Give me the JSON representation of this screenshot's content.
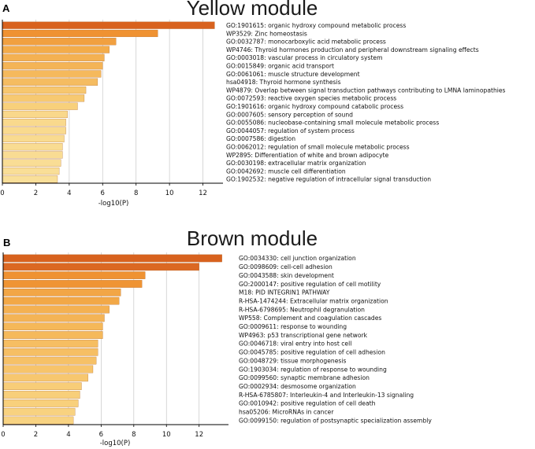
{
  "chart_data": [
    {
      "panel_label": "A",
      "type": "bar",
      "orientation": "horizontal",
      "title": "Yellow module",
      "xlabel": "-log10(P)",
      "ylabel": "",
      "xlim": [
        0,
        13.2
      ],
      "xticks": [
        0,
        2,
        4,
        6,
        8,
        10,
        12
      ],
      "grid": true,
      "categories": [
        "GO:1901615: organic hydroxy compound metabolic process",
        "WP3529: Zinc homeostasis",
        "GO:0032787: monocarboxylic acid metabolic process",
        "WP4746: Thyroid hormones production and peripheral downstream signaling effects",
        "GO:0003018: vascular process in circulatory system",
        "GO:0015849: organic acid transport",
        "GO:0061061: muscle structure development",
        "hsa04918: Thyroid hormone synthesis",
        "WP4879: Overlap between signal transduction pathways contributing to LMNA laminopathies",
        "GO:0072593: reactive oxygen species metabolic process",
        "GO:1901616: organic hydroxy compound catabolic process",
        "GO:0007605: sensory perception of sound",
        "GO:0055086: nucleobase-containing small molecule metabolic process",
        "GO:0044057: regulation of system process",
        "GO:0007586: digestion",
        "GO:0062012: regulation of small molecule metabolic process",
        "WP2895: Differentiation of white and brown adipocyte",
        "GO:0030198: extracellular matrix organization",
        "GO:0042692: muscle cell differentiation",
        "GO:1902532: negative regulation of intracellular signal transduction"
      ],
      "values": [
        12.7,
        9.3,
        6.8,
        6.4,
        6.1,
        6.0,
        5.9,
        5.7,
        5.0,
        4.9,
        4.5,
        3.9,
        3.8,
        3.8,
        3.7,
        3.6,
        3.6,
        3.5,
        3.4,
        3.3
      ],
      "bar_colors": [
        "#d8621e",
        "#ef9232",
        "#f1a040",
        "#f3ac4a",
        "#f4b152",
        "#f4b456",
        "#f5b95c",
        "#f5bc61",
        "#f7c76f",
        "#f7c971",
        "#f8d07b",
        "#f9d88b",
        "#f9d98d",
        "#f9da8e",
        "#f9db90",
        "#f9dc92",
        "#f9dc93",
        "#f9dd95",
        "#f9de97",
        "#f9df99"
      ]
    },
    {
      "panel_label": "B",
      "type": "bar",
      "orientation": "horizontal",
      "title": "Brown module",
      "xlabel": "-log10(P)",
      "ylabel": "",
      "xlim": [
        0,
        13.8
      ],
      "xticks": [
        0,
        2,
        4,
        6,
        8,
        10,
        12
      ],
      "grid": true,
      "categories": [
        "GO:0034330: cell junction organization",
        "GO:0098609: cell-cell adhesion",
        "GO:0043588: skin development",
        "GO:2000147: positive regulation of cell motility",
        "M18: PID INTEGRIN1 PATHWAY",
        "R-HSA-1474244: Extracellular matrix organization",
        "R-HSA-6798695: Neutrophil degranulation",
        "WP558: Complement and coagulation cascades",
        "GO:0009611: response to wounding",
        "WP4963: p53 transcriptional gene network",
        "GO:0046718: viral entry into host cell",
        "GO:0045785: positive regulation of cell adhesion",
        "GO:0048729: tissue morphogenesis",
        "GO:1903034: regulation of response to wounding",
        "GO:0099560: synaptic membrane adhesion",
        "GO:0002934: desmosome organization",
        "R-HSA-6785807: Interleukin-4 and Interleukin-13 signaling",
        "GO:0010942: positive regulation of cell death",
        "hsa05206: MicroRNAs in cancer",
        "GO:0099150: regulation of postsynaptic specialization assembly"
      ],
      "values": [
        13.4,
        12.0,
        8.7,
        8.5,
        7.2,
        7.1,
        6.5,
        6.2,
        6.1,
        6.1,
        5.8,
        5.8,
        5.7,
        5.5,
        5.2,
        4.8,
        4.7,
        4.6,
        4.4,
        4.3
      ],
      "bar_colors": [
        "#d8621e",
        "#db6822",
        "#ef9232",
        "#ef9434",
        "#f2a646",
        "#f2a847",
        "#f4b152",
        "#f4b456",
        "#f5b859",
        "#f5b95b",
        "#f6be62",
        "#f6bf64",
        "#f6c167",
        "#f7c46b",
        "#f7c76f",
        "#f8cd78",
        "#f8cf7a",
        "#f8d07c",
        "#f8d280",
        "#f8d382"
      ]
    }
  ]
}
